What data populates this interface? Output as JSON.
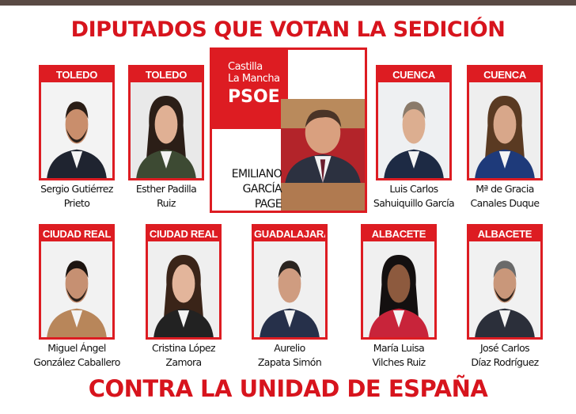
{
  "title_top": "DIPUTADOS QUE VOTAN LA SEDICIÓN",
  "title_bottom": "CONTRA LA UNIDAD DE ESPAÑA",
  "center": {
    "logo_line1": "Castilla",
    "logo_line2": "La Mancha",
    "logo_brand": "PSOE",
    "name_lines": [
      "EMILIANO",
      "GARCÍA",
      "PAGE"
    ]
  },
  "deputies": [
    {
      "province": "TOLEDO",
      "name_lines": [
        "Sergio Gutiérrez",
        "Prieto"
      ]
    },
    {
      "province": "TOLEDO",
      "name_lines": [
        "Esther Padilla",
        "Ruiz"
      ]
    },
    {
      "province": "CUENCA",
      "name_lines": [
        "Luis Carlos",
        "Sahuiquillo García"
      ]
    },
    {
      "province": "CUENCA",
      "name_lines": [
        "Mª de Gracia",
        "Canales Duque"
      ]
    },
    {
      "province": "CIUDAD REAL",
      "name_lines": [
        "Miguel Ángel",
        "González Caballero"
      ]
    },
    {
      "province": "CIUDAD REAL",
      "name_lines": [
        "Cristina López",
        "Zamora"
      ]
    },
    {
      "province": "GUADALAJARA",
      "name_lines": [
        "Aurelio",
        "Zapata Simón"
      ]
    },
    {
      "province": "ALBACETE",
      "name_lines": [
        "María Luisa",
        "Vilches Ruiz"
      ]
    },
    {
      "province": "ALBACETE",
      "name_lines": [
        "José Carlos",
        "Díaz Rodríguez"
      ]
    }
  ],
  "colors": {
    "accent": "#dd1c22",
    "title": "#d7141d"
  }
}
